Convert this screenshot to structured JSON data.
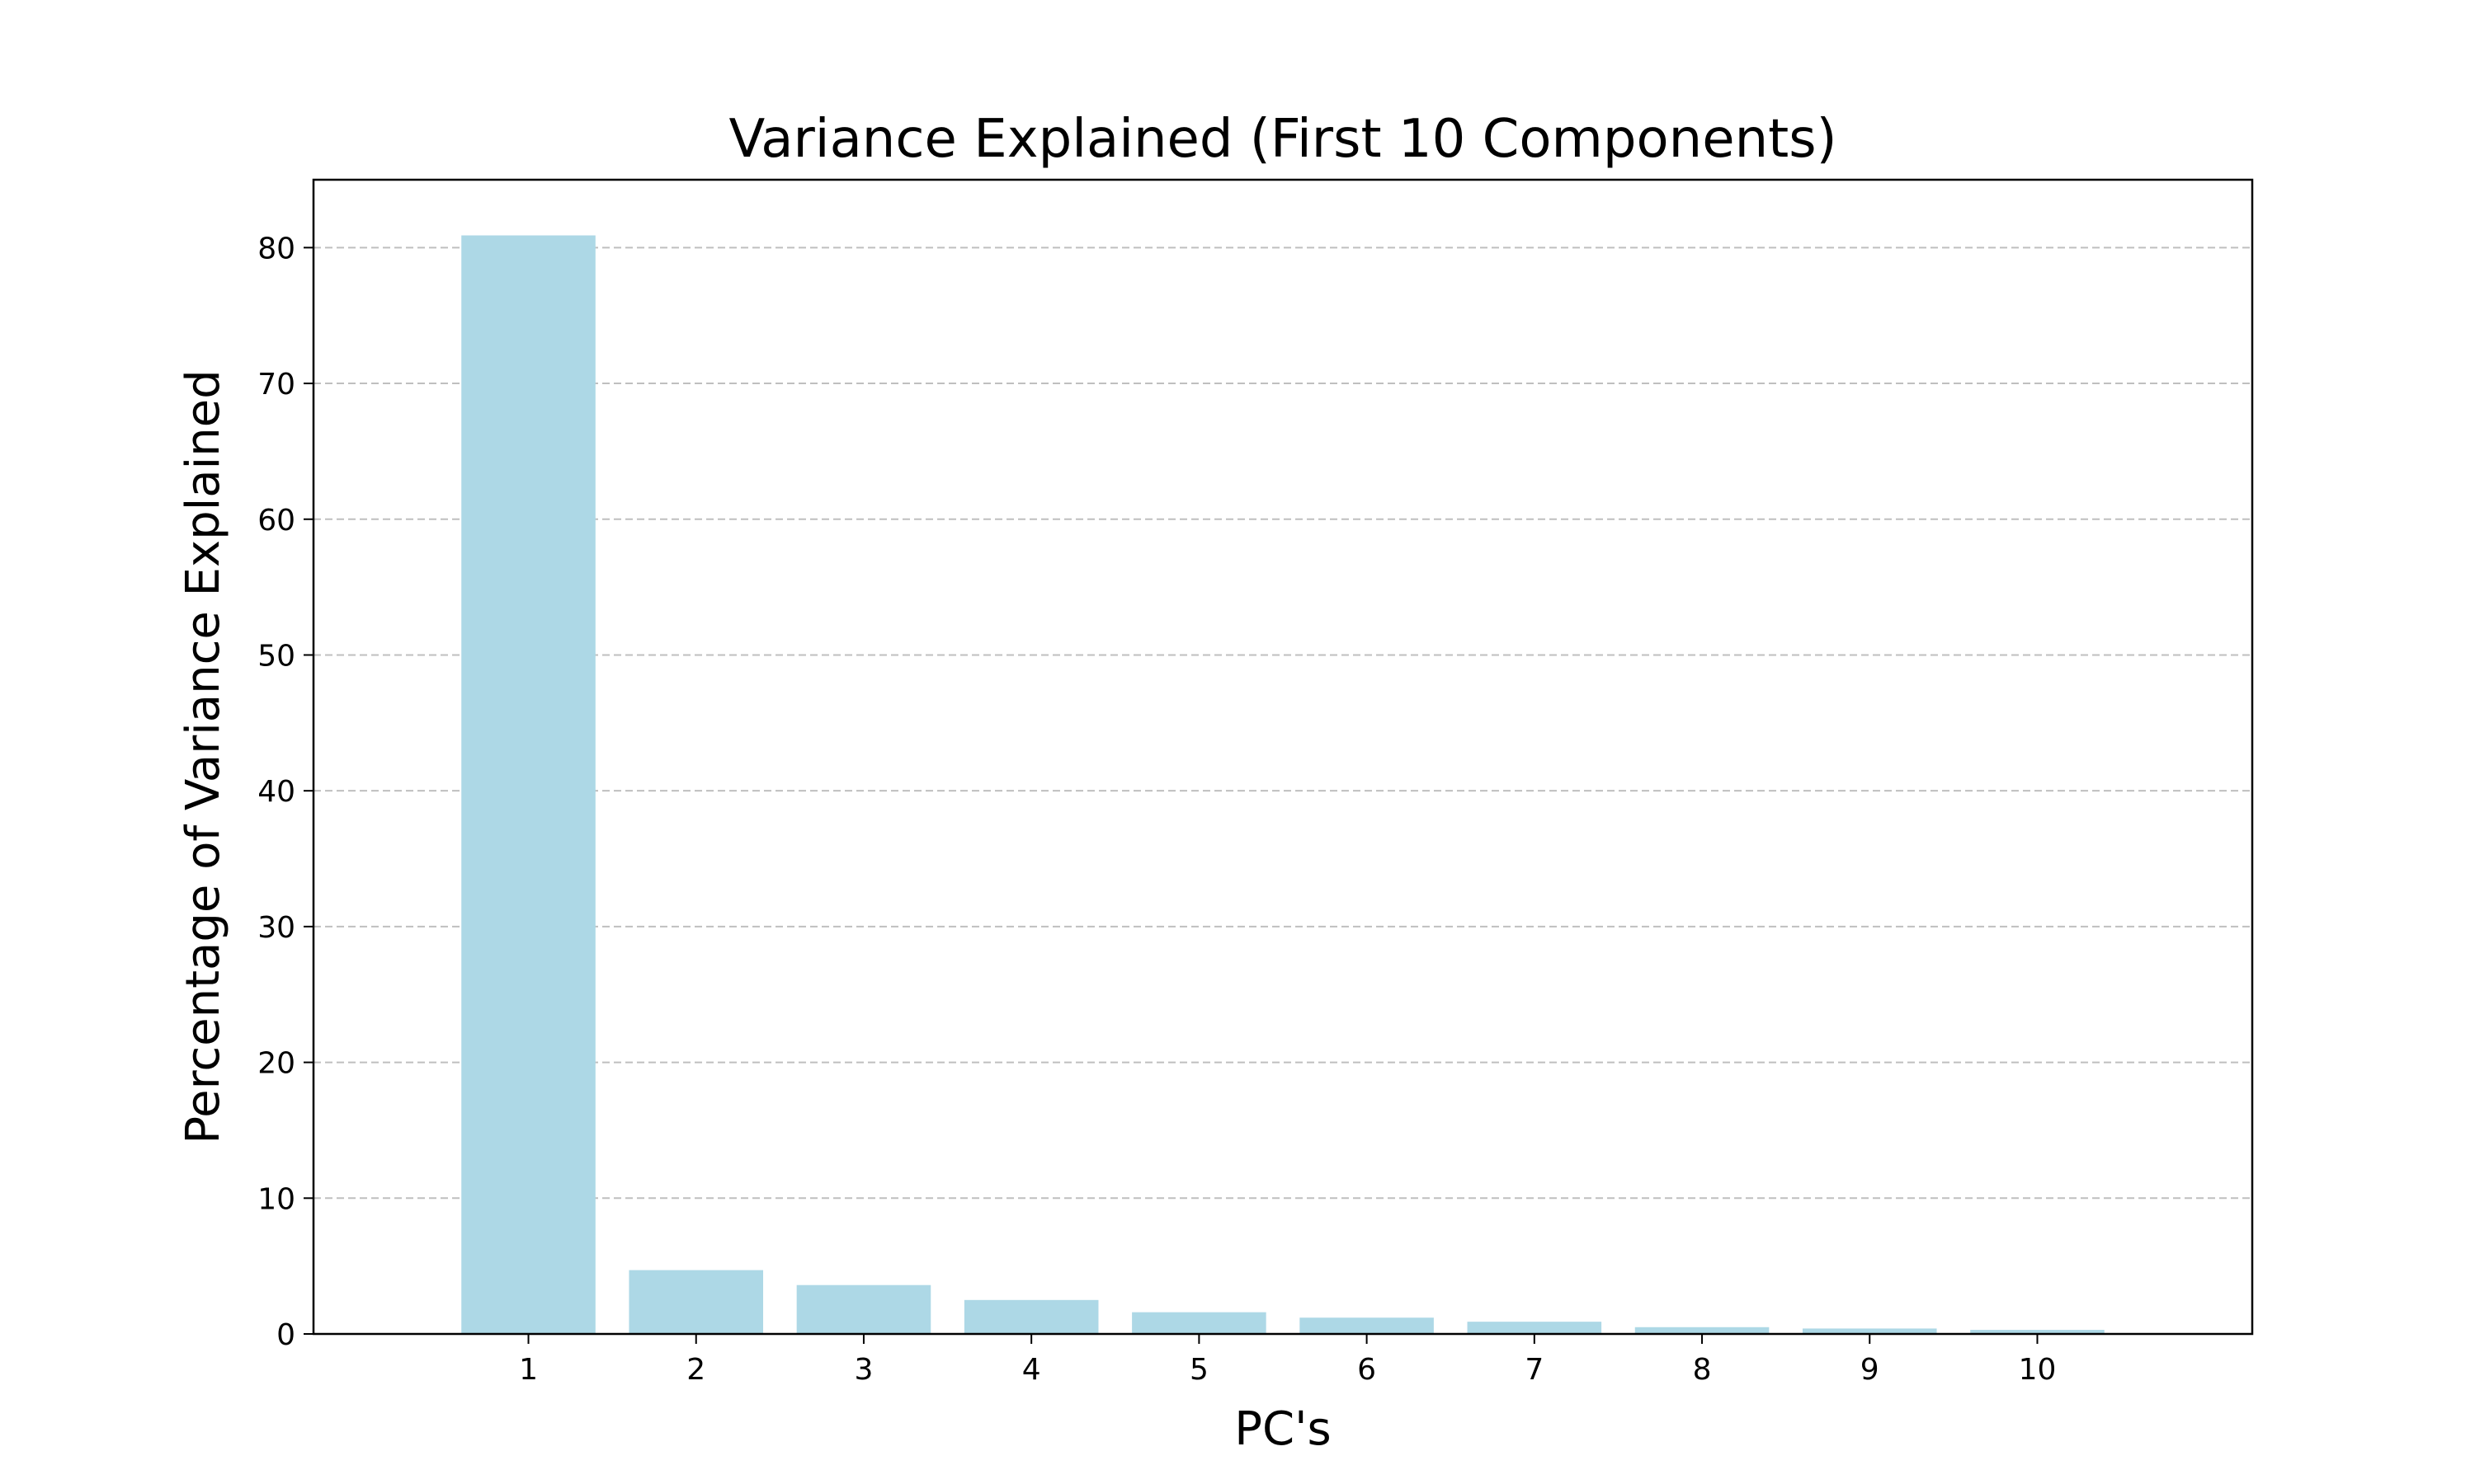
{
  "chart_data": {
    "type": "bar",
    "title": "Variance Explained (First 10 Components)",
    "xlabel": "PC's",
    "ylabel": "Percentage of Variance Explained",
    "categories": [
      "1",
      "2",
      "3",
      "4",
      "5",
      "6",
      "7",
      "8",
      "9",
      "10"
    ],
    "values": [
      80.9,
      4.7,
      3.6,
      2.5,
      1.6,
      1.2,
      0.9,
      0.5,
      0.4,
      0.3
    ],
    "ylim": [
      0,
      85
    ],
    "yticks": [
      0,
      10,
      20,
      30,
      40,
      50,
      60,
      70,
      80
    ],
    "bar_color": "#add8e6",
    "grid": "y-axis dashed",
    "legend": "none"
  }
}
